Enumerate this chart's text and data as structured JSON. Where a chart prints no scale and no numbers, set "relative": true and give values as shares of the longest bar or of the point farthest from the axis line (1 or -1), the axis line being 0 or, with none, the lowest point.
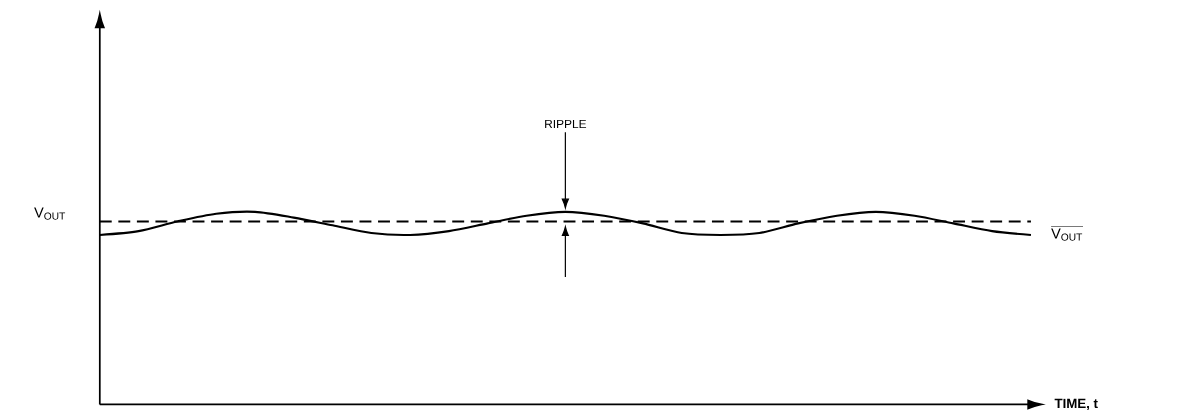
{
  "chart_data": {
    "type": "line",
    "relative": true,
    "xlabel": "TIME, t",
    "ylabel": "V$_{OUT}$",
    "categories": [
      null,
      null,
      null,
      null,
      null,
      null,
      null,
      null,
      null,
      null,
      null,
      null,
      null,
      null,
      null,
      null,
      null,
      null,
      null,
      null,
      null,
      null,
      null,
      null,
      null
    ],
    "series": [
      {
        "color": "#000000",
        "values": [
          0.88,
          0.9,
          0.95,
          0.99,
          1,
          0.97,
          0.93,
          0.89,
          0.88,
          0.9,
          0.94,
          0.98,
          1,
          0.98,
          0.94,
          0.89,
          0.88,
          0.89,
          0.94,
          0.98,
          1,
          0.98,
          0.94,
          0.9,
          0.88
        ]
      }
    ],
    "ref_lines": [
      {
        "axis": "y",
        "value": 0.95,
        "label": "V$_{OUT}$",
        "color": "#000000",
        "line_style": "dashed"
      }
    ],
    "annotations": [
      "RIPPLE"
    ]
  }
}
